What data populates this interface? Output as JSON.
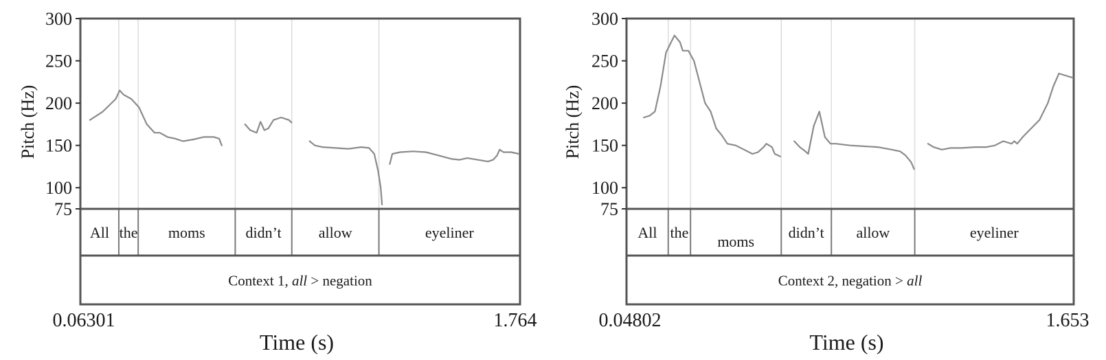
{
  "chart_data": [
    {
      "type": "line",
      "ylabel": "Pitch (Hz)",
      "xlabel": "Time (s)",
      "ylim": [
        75,
        300
      ],
      "yticks": [
        75,
        100,
        150,
        200,
        250,
        300
      ],
      "xlim": [
        0.06301,
        1.764
      ],
      "x_start_label": "0.06301",
      "x_end_label": "1.764",
      "words": [
        {
          "label": "All",
          "start": 0.06301,
          "end": 0.2117
        },
        {
          "label": "the",
          "start": 0.2117,
          "end": 0.2867
        },
        {
          "label": "moms",
          "start": 0.2867,
          "end": 0.6621
        },
        {
          "label": "didn’t",
          "start": 0.6621,
          "end": 0.881
        },
        {
          "label": "allow",
          "start": 0.881,
          "end": 1.218
        },
        {
          "label": "eyeliner",
          "start": 1.218,
          "end": 1.764
        }
      ],
      "context": {
        "prefix": "Context 1, ",
        "italic": "all",
        "suffix": " > negation"
      },
      "series": [
        {
          "segments": [
            [
              [
                0.1,
                180
              ],
              [
                0.15,
                190
              ],
              [
                0.2,
                205
              ],
              [
                0.215,
                215
              ],
              [
                0.23,
                210
              ],
              [
                0.26,
                205
              ],
              [
                0.29,
                195
              ],
              [
                0.32,
                175
              ],
              [
                0.35,
                165
              ],
              [
                0.37,
                165
              ],
              [
                0.4,
                160
              ],
              [
                0.43,
                158
              ],
              [
                0.46,
                155
              ],
              [
                0.5,
                157
              ],
              [
                0.54,
                160
              ],
              [
                0.58,
                160
              ],
              [
                0.6,
                158
              ],
              [
                0.61,
                150
              ]
            ],
            [
              [
                0.7,
                175
              ],
              [
                0.72,
                168
              ],
              [
                0.745,
                165
              ],
              [
                0.76,
                178
              ],
              [
                0.775,
                168
              ],
              [
                0.79,
                170
              ],
              [
                0.81,
                180
              ],
              [
                0.84,
                183
              ],
              [
                0.87,
                180
              ],
              [
                0.88,
                177
              ]
            ],
            [
              [
                0.95,
                155
              ],
              [
                0.97,
                150
              ],
              [
                1.0,
                148
              ],
              [
                1.05,
                147
              ],
              [
                1.1,
                146
              ],
              [
                1.15,
                148
              ],
              [
                1.18,
                147
              ],
              [
                1.2,
                140
              ],
              [
                1.215,
                120
              ],
              [
                1.225,
                100
              ],
              [
                1.23,
                80
              ]
            ],
            [
              [
                1.26,
                128
              ],
              [
                1.27,
                140
              ],
              [
                1.3,
                142
              ],
              [
                1.35,
                143
              ],
              [
                1.4,
                142
              ],
              [
                1.45,
                138
              ],
              [
                1.5,
                134
              ],
              [
                1.53,
                133
              ],
              [
                1.56,
                135
              ],
              [
                1.6,
                133
              ],
              [
                1.64,
                131
              ],
              [
                1.66,
                133
              ],
              [
                1.675,
                138
              ],
              [
                1.685,
                145
              ],
              [
                1.7,
                142
              ],
              [
                1.73,
                142
              ],
              [
                1.76,
                140
              ]
            ]
          ]
        }
      ]
    },
    {
      "type": "line",
      "ylabel": "Pitch (Hz)",
      "xlabel": "Time (s)",
      "ylim": [
        75,
        300
      ],
      "yticks": [
        75,
        100,
        150,
        200,
        250,
        300
      ],
      "xlim": [
        0.04802,
        1.653
      ],
      "x_start_label": "0.04802",
      "x_end_label": "1.653",
      "words": [
        {
          "label": "All",
          "start": 0.04802,
          "end": 0.1978
        },
        {
          "label": "the",
          "start": 0.1978,
          "end": 0.2777
        },
        {
          "label": "moms",
          "start": 0.2777,
          "end": 0.6034
        },
        {
          "label": "didn’t",
          "start": 0.6034,
          "end": 0.7832
        },
        {
          "label": "allow",
          "start": 0.7832,
          "end": 1.0825
        },
        {
          "label": "eyeliner",
          "start": 1.0825,
          "end": 1.653
        }
      ],
      "context": {
        "prefix": "Context 2, negation > ",
        "italic": "all",
        "suffix": ""
      },
      "series": [
        {
          "segments": [
            [
              [
                0.11,
                183
              ],
              [
                0.13,
                185
              ],
              [
                0.15,
                190
              ],
              [
                0.17,
                220
              ],
              [
                0.19,
                260
              ],
              [
                0.22,
                280
              ],
              [
                0.24,
                272
              ],
              [
                0.25,
                262
              ],
              [
                0.27,
                262
              ],
              [
                0.29,
                250
              ],
              [
                0.31,
                225
              ],
              [
                0.33,
                200
              ],
              [
                0.35,
                190
              ],
              [
                0.37,
                170
              ],
              [
                0.39,
                162
              ],
              [
                0.41,
                152
              ],
              [
                0.44,
                150
              ],
              [
                0.47,
                145
              ],
              [
                0.5,
                140
              ],
              [
                0.52,
                142
              ],
              [
                0.54,
                148
              ],
              [
                0.55,
                152
              ],
              [
                0.57,
                148
              ],
              [
                0.58,
                140
              ],
              [
                0.6,
                137
              ]
            ],
            [
              [
                0.65,
                155
              ],
              [
                0.67,
                148
              ],
              [
                0.69,
                143
              ],
              [
                0.7,
                140
              ],
              [
                0.72,
                173
              ],
              [
                0.74,
                190
              ],
              [
                0.76,
                160
              ],
              [
                0.78,
                152
              ],
              [
                0.8,
                152
              ],
              [
                0.85,
                150
              ],
              [
                0.9,
                149
              ],
              [
                0.95,
                148
              ],
              [
                1.0,
                145
              ],
              [
                1.03,
                143
              ],
              [
                1.05,
                138
              ],
              [
                1.07,
                130
              ],
              [
                1.08,
                122
              ]
            ],
            [
              [
                1.13,
                152
              ],
              [
                1.15,
                148
              ],
              [
                1.18,
                145
              ],
              [
                1.21,
                147
              ],
              [
                1.25,
                147
              ],
              [
                1.3,
                148
              ],
              [
                1.34,
                148
              ],
              [
                1.37,
                150
              ],
              [
                1.4,
                155
              ],
              [
                1.43,
                152
              ],
              [
                1.44,
                155
              ],
              [
                1.45,
                152
              ],
              [
                1.47,
                160
              ],
              [
                1.5,
                170
              ],
              [
                1.53,
                180
              ],
              [
                1.56,
                200
              ],
              [
                1.58,
                220
              ],
              [
                1.6,
                235
              ],
              [
                1.62,
                233
              ],
              [
                1.65,
                230
              ]
            ]
          ]
        }
      ]
    }
  ]
}
